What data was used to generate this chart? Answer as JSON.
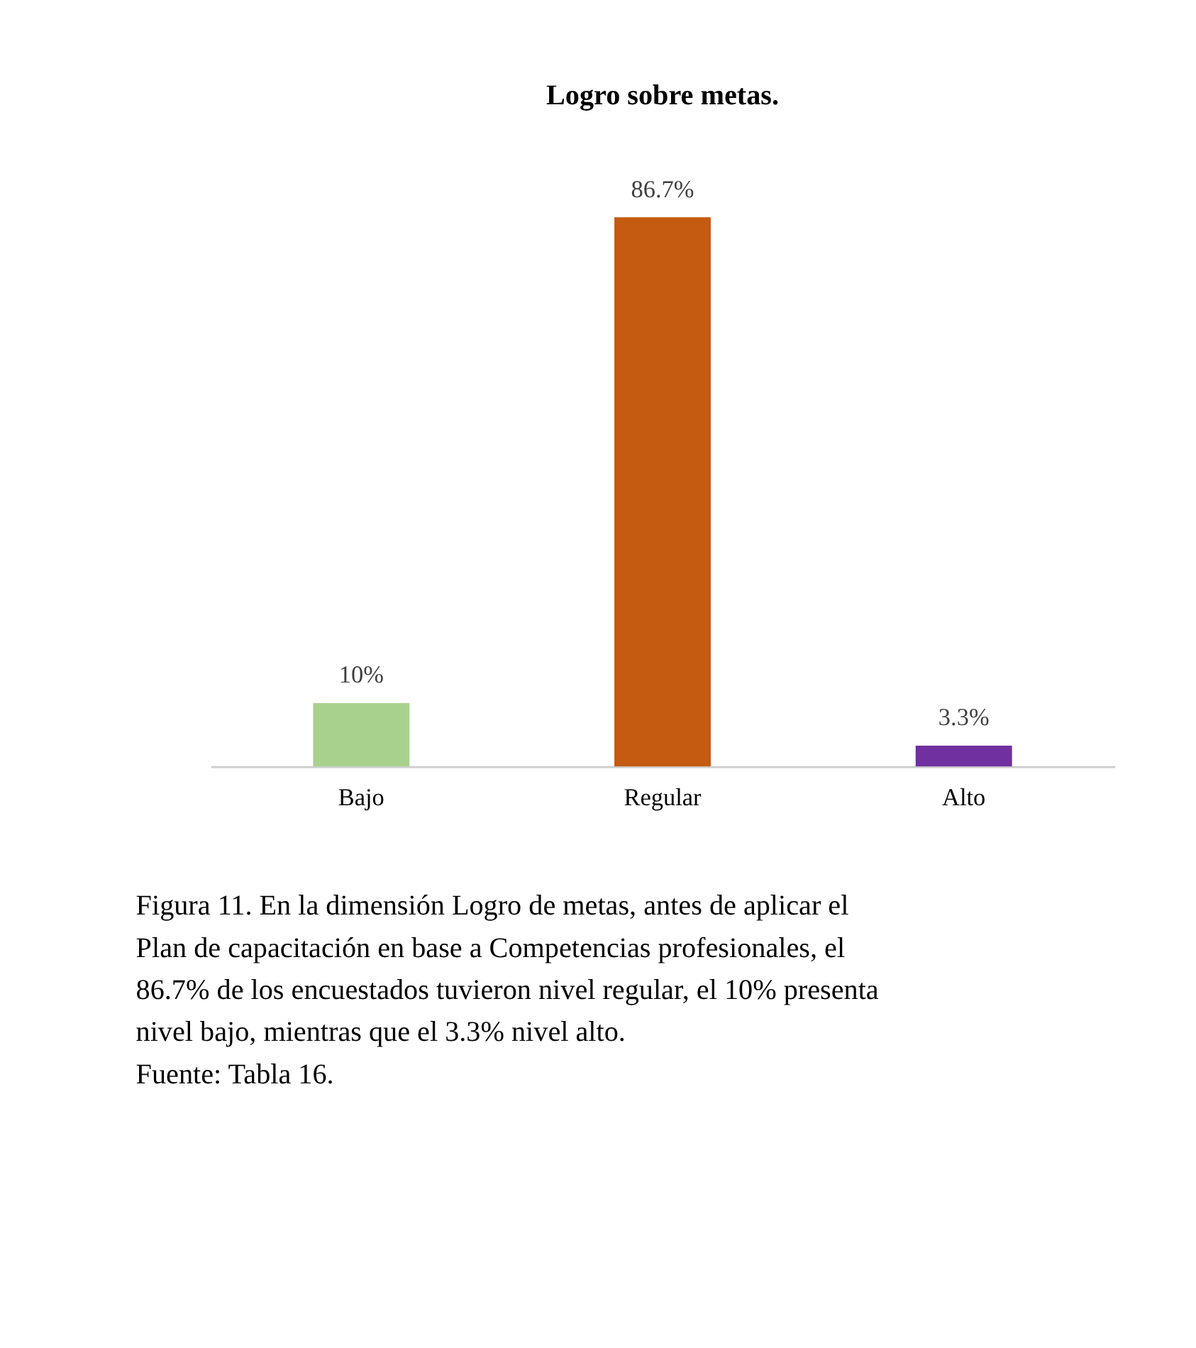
{
  "chart_data": {
    "type": "bar",
    "title": "Logro sobre metas.",
    "categories": [
      "Bajo",
      "Regular",
      "Alto"
    ],
    "values": [
      10,
      86.7,
      3.3
    ],
    "colors": [
      "#a9d18e",
      "#c55a11",
      "#7030a0"
    ],
    "value_labels": [
      "10%",
      "86.7%",
      "3.3%"
    ],
    "annotations": [
      "Figura 11. En la dimensión Logro de metas, antes de aplicar el Plan de capacitación en base a Competencias profesionales, el 86.7% de los encuestados tuvieron nivel regular, el 10% presenta nivel bajo, mientras que el 3.3% nivel alto.",
      "Fuente: Tabla 16."
    ]
  }
}
